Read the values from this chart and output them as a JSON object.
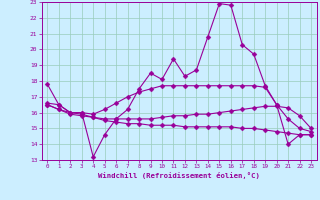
{
  "xlabel": "Windchill (Refroidissement éolien,°C)",
  "x": [
    0,
    1,
    2,
    3,
    4,
    5,
    6,
    7,
    8,
    9,
    10,
    11,
    12,
    13,
    14,
    15,
    16,
    17,
    18,
    19,
    20,
    21,
    22,
    23
  ],
  "line1": [
    17.8,
    16.5,
    16.0,
    16.0,
    13.2,
    14.6,
    15.6,
    16.2,
    17.5,
    18.5,
    18.1,
    19.4,
    18.3,
    18.7,
    20.8,
    22.9,
    22.8,
    20.3,
    19.7,
    17.7,
    16.5,
    14.0,
    14.6,
    14.6
  ],
  "line2": [
    16.6,
    16.5,
    16.0,
    16.0,
    15.9,
    16.2,
    16.6,
    17.0,
    17.3,
    17.5,
    17.7,
    17.7,
    17.7,
    17.7,
    17.7,
    17.7,
    17.7,
    17.7,
    17.7,
    17.6,
    16.5,
    15.6,
    15.0,
    14.8
  ],
  "line3": [
    16.5,
    16.2,
    15.9,
    15.8,
    15.7,
    15.6,
    15.6,
    15.6,
    15.6,
    15.6,
    15.7,
    15.8,
    15.8,
    15.9,
    15.9,
    16.0,
    16.1,
    16.2,
    16.3,
    16.4,
    16.4,
    16.3,
    15.8,
    15.0
  ],
  "line4": [
    16.5,
    16.2,
    16.0,
    15.9,
    15.7,
    15.5,
    15.4,
    15.3,
    15.3,
    15.2,
    15.2,
    15.2,
    15.1,
    15.1,
    15.1,
    15.1,
    15.1,
    15.0,
    15.0,
    14.9,
    14.8,
    14.7,
    14.6,
    14.6
  ],
  "line_color": "#990099",
  "bg_color": "#cceeff",
  "grid_color": "#99ccbb",
  "ylim": [
    13,
    23
  ],
  "yticks": [
    13,
    14,
    15,
    16,
    17,
    18,
    19,
    20,
    21,
    22,
    23
  ],
  "xticks": [
    0,
    1,
    2,
    3,
    4,
    5,
    6,
    7,
    8,
    9,
    10,
    11,
    12,
    13,
    14,
    15,
    16,
    17,
    18,
    19,
    20,
    21,
    22,
    23
  ]
}
